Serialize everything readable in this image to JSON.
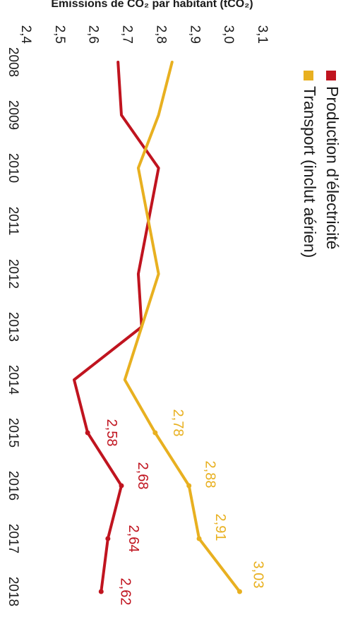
{
  "chart_data": {
    "type": "line",
    "orientation": "rotated-90-clockwise",
    "x": [
      "2008",
      "2009",
      "2010",
      "2011",
      "2012",
      "2013",
      "2014",
      "2015",
      "2016",
      "2017",
      "2018"
    ],
    "ylabel": "Emissions de CO₂ par habitant (tCO₂)",
    "ylim": [
      2.4,
      3.1
    ],
    "yticks": [
      "3,1",
      "3,0",
      "2,9",
      "2,8",
      "2,7",
      "2,6",
      "2,5",
      "2,4"
    ],
    "grid": false,
    "legend_position": "top-left",
    "series": [
      {
        "name": "Production d’électricité",
        "color": "#c0141f",
        "values": [
          2.67,
          2.68,
          2.79,
          2.76,
          2.73,
          2.74,
          2.54,
          2.58,
          2.68,
          2.64,
          2.62
        ],
        "labels": [
          "",
          "",
          "",
          "",
          "",
          "",
          "",
          "2,58",
          "2,68",
          "2,64",
          "2,62"
        ]
      },
      {
        "name": "Transport (inclut aérien)",
        "color": "#e8b020",
        "values": [
          2.83,
          2.79,
          2.73,
          2.76,
          2.79,
          2.74,
          2.69,
          2.78,
          2.88,
          2.91,
          3.03
        ],
        "labels": [
          "",
          "",
          "",
          "",
          "",
          "",
          "",
          "2,78",
          "2,88",
          "2,91",
          "3,03"
        ]
      }
    ]
  }
}
